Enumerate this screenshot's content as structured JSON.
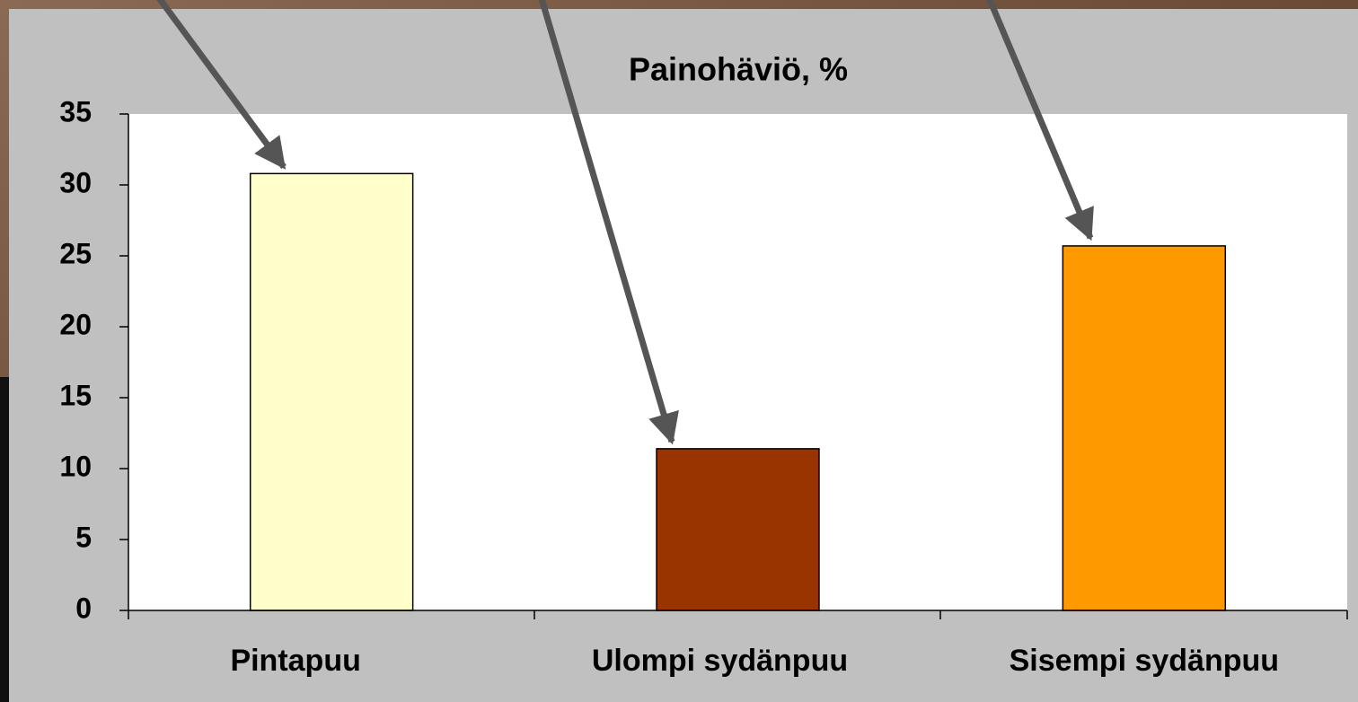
{
  "chart_data": {
    "type": "bar",
    "title": "Painohäviö, %",
    "categories": [
      "Pintapuu",
      "Ulompi sydänpuu",
      "Sisempi sydänpuu"
    ],
    "values": [
      30.8,
      11.4,
      25.7
    ],
    "colors": [
      "#ffffcc",
      "#993300",
      "#ff9900"
    ],
    "ylim": [
      0,
      35
    ],
    "yticks": [
      0,
      5,
      10,
      15,
      20,
      25,
      30,
      35
    ],
    "grid": false
  }
}
